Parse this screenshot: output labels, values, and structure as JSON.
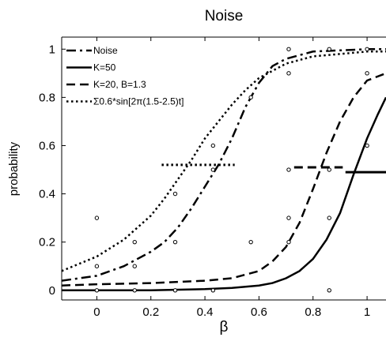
{
  "chart_data": {
    "type": "line",
    "title": "Noise",
    "xlabel": "β",
    "ylabel": "probability",
    "xlim": [
      -0.13,
      1.07
    ],
    "ylim": [
      -0.04,
      1.05
    ],
    "x_ticks": [
      0,
      0.2,
      0.4,
      0.6,
      0.8,
      1
    ],
    "x_tick_labels": [
      "0",
      "0.2",
      "0.4",
      "0.6",
      "0.8",
      "1"
    ],
    "y_ticks": [
      0,
      0.2,
      0.4,
      0.6,
      0.8,
      1
    ],
    "y_tick_labels": [
      "0",
      "0.2",
      "0.4",
      "0.6",
      "0.8",
      "1"
    ],
    "legend_position": "top-left",
    "series": [
      {
        "name": "Noise",
        "style": "dashdot",
        "x": [
          -0.13,
          0.0,
          0.1,
          0.2,
          0.25,
          0.3,
          0.35,
          0.4,
          0.45,
          0.5,
          0.55,
          0.6,
          0.65,
          0.7,
          0.8,
          0.9,
          1.0,
          1.07
        ],
        "y": [
          0.04,
          0.06,
          0.1,
          0.16,
          0.2,
          0.26,
          0.34,
          0.43,
          0.52,
          0.63,
          0.76,
          0.86,
          0.93,
          0.96,
          0.99,
          0.995,
          1.0,
          1.0
        ]
      },
      {
        "name": "K=50",
        "style": "solid",
        "x": [
          -0.13,
          0.0,
          0.2,
          0.4,
          0.5,
          0.6,
          0.65,
          0.7,
          0.75,
          0.8,
          0.85,
          0.9,
          0.95,
          1.0,
          1.04,
          1.07
        ],
        "y": [
          0.0,
          0.0,
          0.0,
          0.005,
          0.01,
          0.02,
          0.03,
          0.05,
          0.08,
          0.13,
          0.21,
          0.32,
          0.48,
          0.63,
          0.73,
          0.8
        ]
      },
      {
        "name": "K=20, B=1.3",
        "style": "dashed",
        "x": [
          -0.13,
          0.0,
          0.2,
          0.4,
          0.5,
          0.6,
          0.65,
          0.7,
          0.75,
          0.8,
          0.85,
          0.9,
          0.95,
          1.0,
          1.07
        ],
        "y": [
          0.02,
          0.025,
          0.03,
          0.04,
          0.05,
          0.08,
          0.12,
          0.18,
          0.28,
          0.42,
          0.57,
          0.7,
          0.8,
          0.87,
          0.9
        ]
      },
      {
        "name": "Σ0.6*sin[2π(1.5-2.5)t]",
        "style": "dotted",
        "x": [
          -0.13,
          0.0,
          0.1,
          0.2,
          0.25,
          0.3,
          0.35,
          0.4,
          0.45,
          0.5,
          0.55,
          0.6,
          0.7,
          0.8,
          0.9,
          1.0,
          1.07
        ],
        "y": [
          0.08,
          0.14,
          0.21,
          0.31,
          0.38,
          0.46,
          0.54,
          0.63,
          0.7,
          0.77,
          0.83,
          0.88,
          0.94,
          0.97,
          0.98,
          0.99,
          0.99
        ]
      }
    ],
    "threshold_markers": [
      {
        "series": "Σ0.6*sin[2π(1.5-2.5)t]",
        "style": "dotted",
        "x": [
          0.24,
          0.51
        ],
        "y": 0.52
      },
      {
        "series": "K=20, B=1.3",
        "style": "dashed",
        "x": [
          0.73,
          0.91
        ],
        "y": 0.51
      },
      {
        "series": "K=50",
        "style": "solid",
        "x": [
          0.92,
          1.07
        ],
        "y": 0.49
      }
    ],
    "observed_points": {
      "marker": "open-circle",
      "x": [
        0.0,
        0.0,
        0.0,
        0.14,
        0.14,
        0.14,
        0.29,
        0.29,
        0.29,
        0.43,
        0.43,
        0.43,
        0.57,
        0.57,
        0.71,
        0.71,
        0.71,
        0.71,
        0.71,
        0.86,
        0.86,
        0.86,
        0.86,
        1.0,
        1.0,
        1.0
      ],
      "y": [
        0.3,
        0.1,
        0.0,
        0.2,
        0.1,
        0.0,
        0.4,
        0.2,
        0.0,
        0.6,
        0.5,
        0.0,
        0.8,
        0.2,
        1.0,
        0.9,
        0.5,
        0.3,
        0.2,
        1.0,
        0.5,
        0.3,
        0.0,
        1.0,
        0.9,
        0.6
      ]
    }
  }
}
